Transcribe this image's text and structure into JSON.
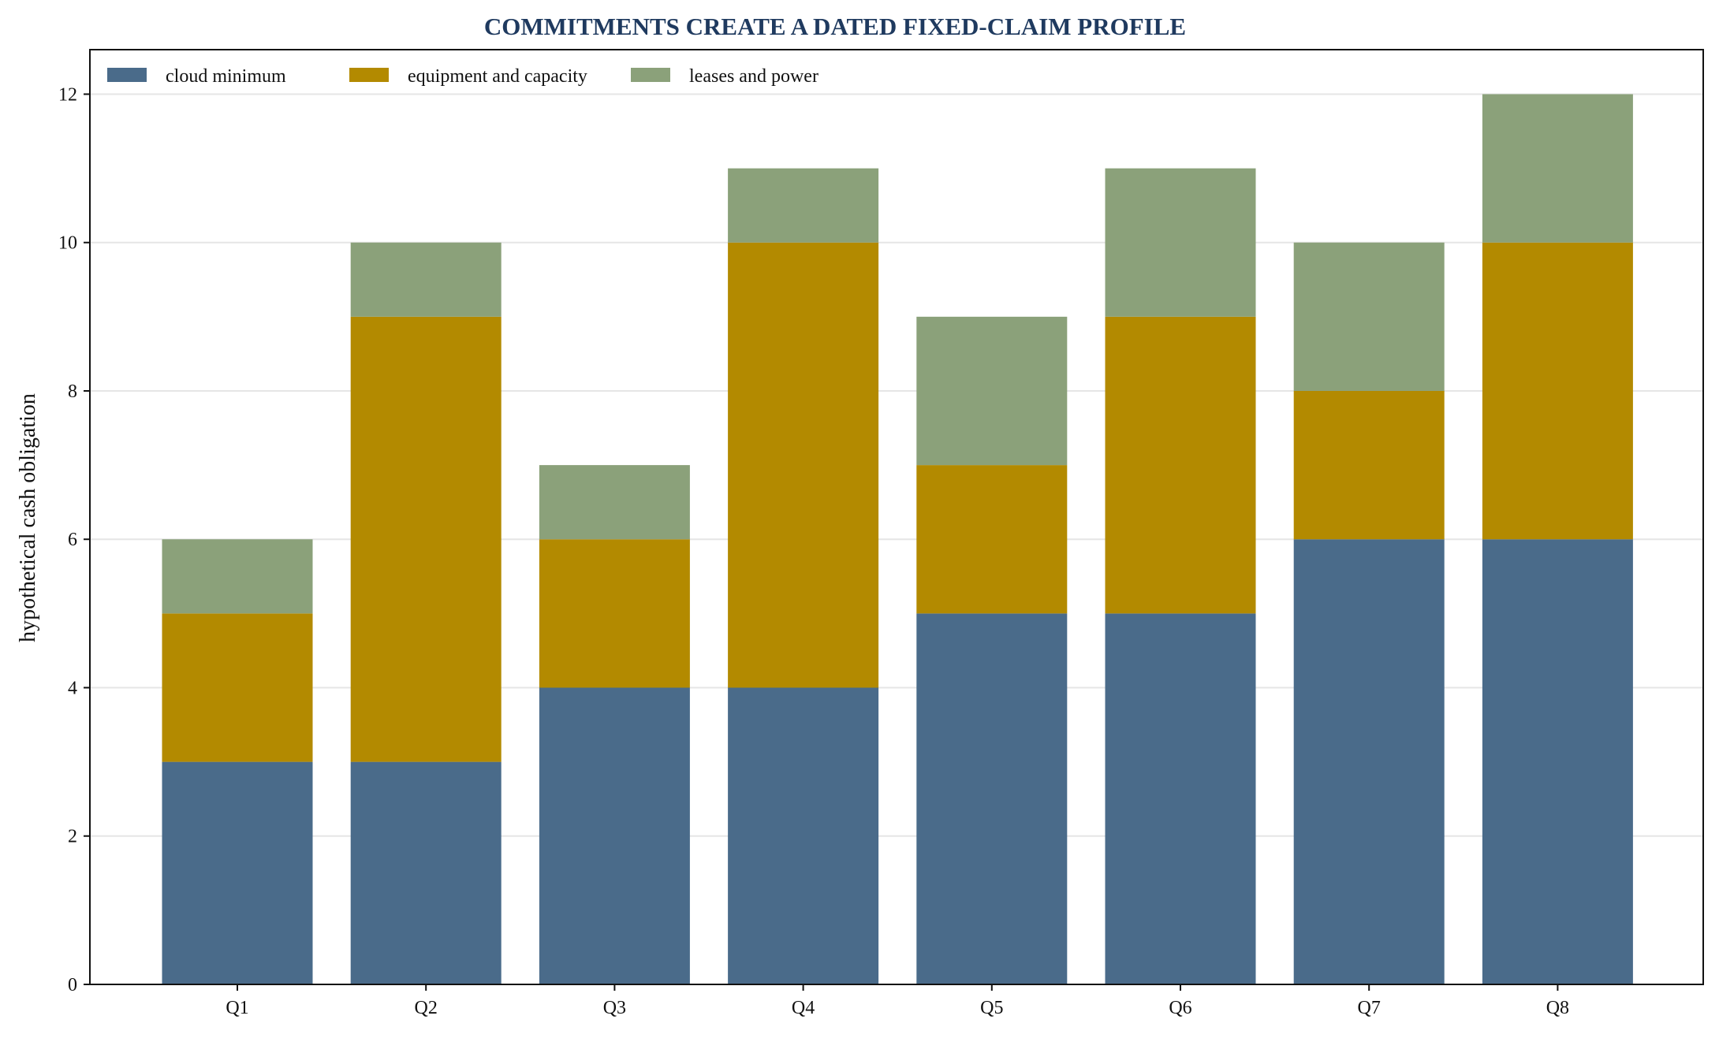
{
  "chart_data": {
    "type": "bar",
    "stacked": true,
    "title": "COMMITMENTS CREATE A DATED FIXED-CLAIM PROFILE",
    "xlabel": "",
    "ylabel": "hypothetical cash obligation",
    "categories": [
      "Q1",
      "Q2",
      "Q3",
      "Q4",
      "Q5",
      "Q6",
      "Q7",
      "Q8"
    ],
    "series": [
      {
        "name": "cloud minimum",
        "color": "#4a6b8a",
        "values": [
          3,
          3,
          4,
          4,
          5,
          5,
          6,
          6
        ]
      },
      {
        "name": "equipment and capacity",
        "color": "#b38a00",
        "values": [
          2,
          6,
          2,
          6,
          2,
          4,
          2,
          4
        ]
      },
      {
        "name": "leases and power",
        "color": "#8ba17a",
        "values": [
          1,
          1,
          1,
          1,
          2,
          2,
          2,
          2
        ]
      }
    ],
    "ylim": [
      0,
      12.6
    ],
    "yticks": [
      0,
      2,
      4,
      6,
      8,
      10,
      12
    ],
    "grid": "horizontal",
    "legend_position": "top-left",
    "title_color": "#1f3a5f"
  }
}
